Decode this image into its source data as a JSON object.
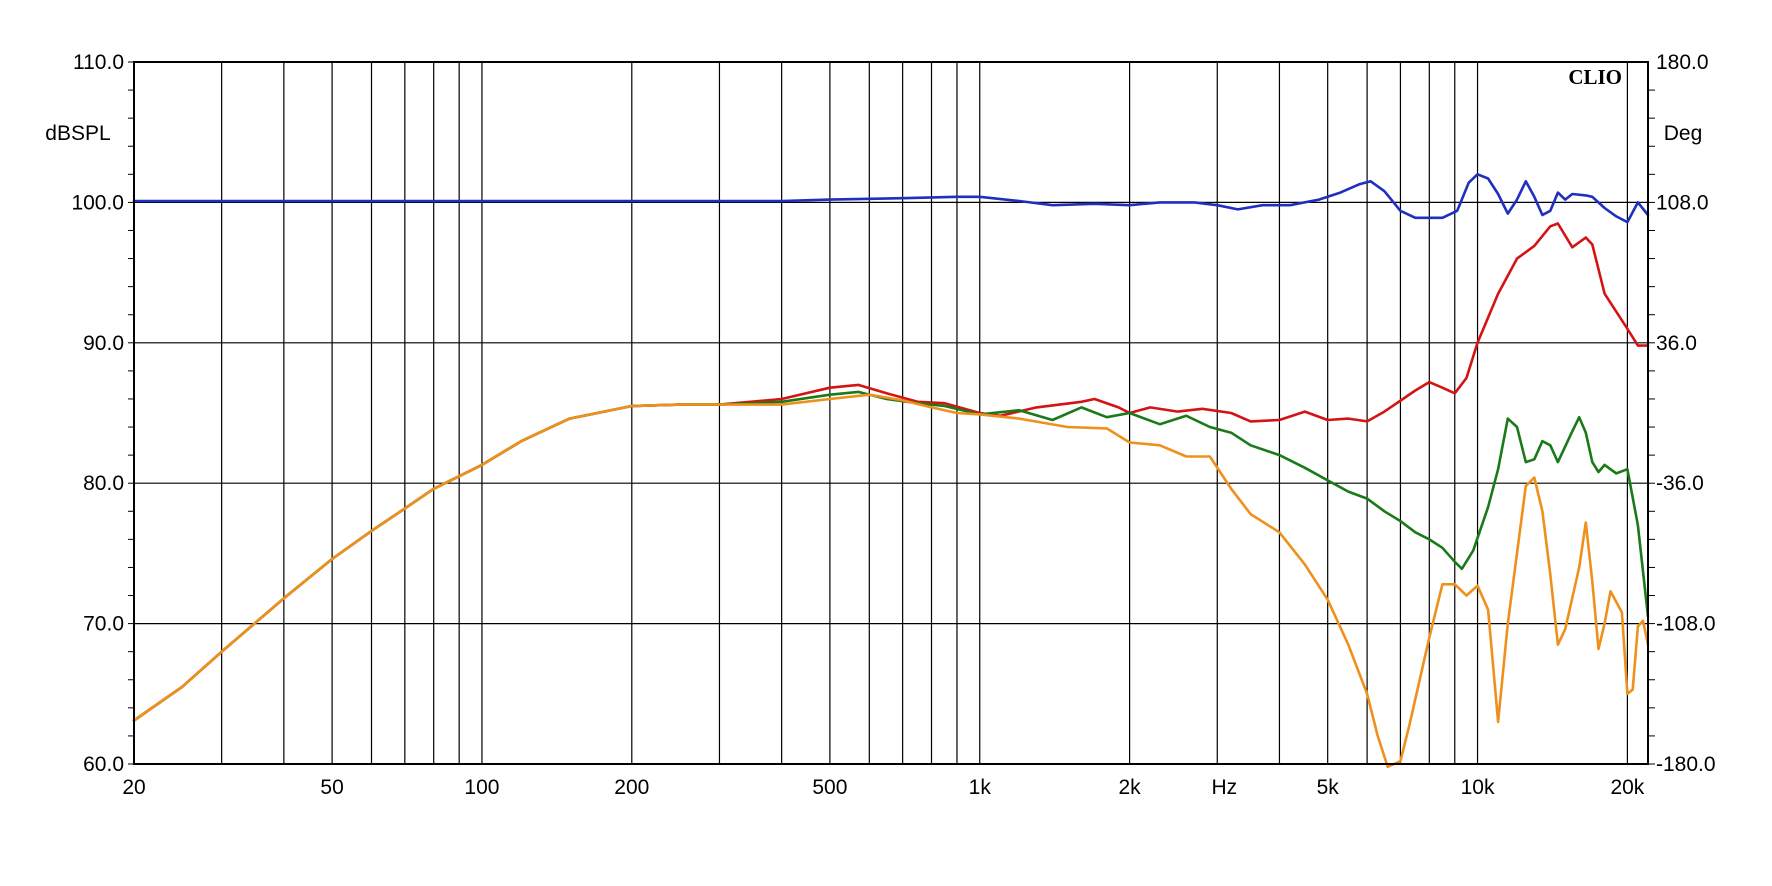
{
  "chart_data": {
    "type": "line",
    "brand": "CLIO",
    "xlabel": "Hz",
    "ylabel": "dBSPL",
    "y2label": "Deg",
    "xscale": "log",
    "xlim": [
      20,
      22000
    ],
    "ylim": [
      60,
      110
    ],
    "y2lim": [
      -180,
      180
    ],
    "grid": true,
    "x_ticks": [
      {
        "value": 20,
        "label": "20"
      },
      {
        "value": 50,
        "label": "50"
      },
      {
        "value": 100,
        "label": "100"
      },
      {
        "value": 200,
        "label": "200"
      },
      {
        "value": 500,
        "label": "500"
      },
      {
        "value": 1000,
        "label": "1k"
      },
      {
        "value": 2000,
        "label": "2k"
      },
      {
        "value": 5000,
        "label": "5k"
      },
      {
        "value": 10000,
        "label": "10k"
      },
      {
        "value": 20000,
        "label": "20k"
      }
    ],
    "x_unit_position": 3100,
    "y_ticks": [
      {
        "value": 60,
        "label": "60.0"
      },
      {
        "value": 70,
        "label": "70.0"
      },
      {
        "value": 80,
        "label": "80.0"
      },
      {
        "value": 90,
        "label": "90.0"
      },
      {
        "value": 100,
        "label": "100.0"
      },
      {
        "value": 110,
        "label": "110.0"
      }
    ],
    "y2_ticks": [
      {
        "value": -180,
        "label": "-180.0"
      },
      {
        "value": -108,
        "label": "-108.0"
      },
      {
        "value": -36,
        "label": "-36.0"
      },
      {
        "value": 36,
        "label": "36.0"
      },
      {
        "value": 108,
        "label": "108.0"
      },
      {
        "value": 180,
        "label": "180.0"
      }
    ],
    "series": [
      {
        "color": "#1f2fc0",
        "points": [
          [
            20,
            100.1
          ],
          [
            50,
            100.1
          ],
          [
            100,
            100.1
          ],
          [
            200,
            100.1
          ],
          [
            400,
            100.1
          ],
          [
            500,
            100.2
          ],
          [
            700,
            100.3
          ],
          [
            900,
            100.4
          ],
          [
            1000,
            100.4
          ],
          [
            1200,
            100.1
          ],
          [
            1400,
            99.8
          ],
          [
            1700,
            99.9
          ],
          [
            2000,
            99.8
          ],
          [
            2300,
            100.0
          ],
          [
            2700,
            100.0
          ],
          [
            3000,
            99.8
          ],
          [
            3300,
            99.5
          ],
          [
            3700,
            99.8
          ],
          [
            4200,
            99.8
          ],
          [
            4800,
            100.2
          ],
          [
            5300,
            100.7
          ],
          [
            5800,
            101.3
          ],
          [
            6100,
            101.5
          ],
          [
            6500,
            100.8
          ],
          [
            7000,
            99.4
          ],
          [
            7500,
            98.9
          ],
          [
            8500,
            98.9
          ],
          [
            9100,
            99.4
          ],
          [
            9600,
            101.4
          ],
          [
            10000,
            102.0
          ],
          [
            10500,
            101.7
          ],
          [
            11000,
            100.6
          ],
          [
            11500,
            99.2
          ],
          [
            12000,
            100.2
          ],
          [
            12500,
            101.5
          ],
          [
            13000,
            100.4
          ],
          [
            13500,
            99.1
          ],
          [
            14000,
            99.4
          ],
          [
            14500,
            100.7
          ],
          [
            15000,
            100.2
          ],
          [
            15500,
            100.6
          ],
          [
            16500,
            100.5
          ],
          [
            17000,
            100.4
          ],
          [
            18000,
            99.6
          ],
          [
            19000,
            99.0
          ],
          [
            20000,
            98.6
          ],
          [
            21000,
            100.0
          ],
          [
            22000,
            99.1
          ]
        ]
      },
      {
        "color": "#d41414",
        "points": [
          [
            20,
            63.1
          ],
          [
            25,
            65.5
          ],
          [
            30,
            68.0
          ],
          [
            40,
            71.8
          ],
          [
            50,
            74.6
          ],
          [
            60,
            76.6
          ],
          [
            70,
            78.2
          ],
          [
            80,
            79.6
          ],
          [
            100,
            81.3
          ],
          [
            120,
            83.0
          ],
          [
            150,
            84.6
          ],
          [
            200,
            85.5
          ],
          [
            250,
            85.6
          ],
          [
            300,
            85.6
          ],
          [
            400,
            86.0
          ],
          [
            500,
            86.8
          ],
          [
            570,
            87.0
          ],
          [
            650,
            86.4
          ],
          [
            750,
            85.8
          ],
          [
            850,
            85.7
          ],
          [
            1000,
            85.0
          ],
          [
            1100,
            84.8
          ],
          [
            1300,
            85.4
          ],
          [
            1600,
            85.8
          ],
          [
            1700,
            86.0
          ],
          [
            1900,
            85.4
          ],
          [
            2000,
            85.0
          ],
          [
            2200,
            85.4
          ],
          [
            2500,
            85.1
          ],
          [
            2800,
            85.3
          ],
          [
            3200,
            85.0
          ],
          [
            3500,
            84.4
          ],
          [
            4000,
            84.5
          ],
          [
            4500,
            85.1
          ],
          [
            5000,
            84.5
          ],
          [
            5500,
            84.6
          ],
          [
            6000,
            84.4
          ],
          [
            6500,
            85.1
          ],
          [
            7500,
            86.6
          ],
          [
            8000,
            87.2
          ],
          [
            8500,
            86.8
          ],
          [
            9000,
            86.4
          ],
          [
            9500,
            87.5
          ],
          [
            10000,
            90.0
          ],
          [
            11000,
            93.5
          ],
          [
            12000,
            96.0
          ],
          [
            13000,
            96.9
          ],
          [
            14000,
            98.3
          ],
          [
            14500,
            98.5
          ],
          [
            15500,
            96.8
          ],
          [
            16500,
            97.5
          ],
          [
            17000,
            97.0
          ],
          [
            18000,
            93.5
          ],
          [
            20000,
            91.0
          ],
          [
            21000,
            89.8
          ],
          [
            22000,
            89.8
          ]
        ]
      },
      {
        "color": "#1a7a1a",
        "points": [
          [
            20,
            63.1
          ],
          [
            25,
            65.5
          ],
          [
            30,
            68.0
          ],
          [
            40,
            71.8
          ],
          [
            50,
            74.6
          ],
          [
            60,
            76.6
          ],
          [
            70,
            78.2
          ],
          [
            80,
            79.6
          ],
          [
            100,
            81.3
          ],
          [
            120,
            83.0
          ],
          [
            150,
            84.6
          ],
          [
            200,
            85.5
          ],
          [
            250,
            85.6
          ],
          [
            300,
            85.6
          ],
          [
            400,
            85.8
          ],
          [
            500,
            86.3
          ],
          [
            570,
            86.5
          ],
          [
            650,
            86.0
          ],
          [
            750,
            85.7
          ],
          [
            850,
            85.5
          ],
          [
            1000,
            84.9
          ],
          [
            1200,
            85.2
          ],
          [
            1400,
            84.5
          ],
          [
            1600,
            85.4
          ],
          [
            1800,
            84.7
          ],
          [
            2000,
            85.0
          ],
          [
            2300,
            84.2
          ],
          [
            2600,
            84.8
          ],
          [
            2900,
            84.0
          ],
          [
            3200,
            83.6
          ],
          [
            3500,
            82.7
          ],
          [
            4000,
            82.0
          ],
          [
            4500,
            81.1
          ],
          [
            5000,
            80.2
          ],
          [
            5500,
            79.4
          ],
          [
            6000,
            78.9
          ],
          [
            6500,
            78.0
          ],
          [
            7000,
            77.3
          ],
          [
            7500,
            76.5
          ],
          [
            8000,
            76.0
          ],
          [
            8500,
            75.4
          ],
          [
            9000,
            74.4
          ],
          [
            9300,
            73.9
          ],
          [
            9800,
            75.2
          ],
          [
            10500,
            78.3
          ],
          [
            11000,
            81.0
          ],
          [
            11500,
            84.6
          ],
          [
            12000,
            84.0
          ],
          [
            12500,
            81.5
          ],
          [
            13000,
            81.7
          ],
          [
            13500,
            83.0
          ],
          [
            14000,
            82.7
          ],
          [
            14500,
            81.5
          ],
          [
            15500,
            83.7
          ],
          [
            16000,
            84.7
          ],
          [
            16500,
            83.6
          ],
          [
            17000,
            81.5
          ],
          [
            17500,
            80.8
          ],
          [
            18000,
            81.3
          ],
          [
            19000,
            80.7
          ],
          [
            20000,
            81.0
          ],
          [
            21000,
            77.0
          ],
          [
            22000,
            70.5
          ]
        ]
      },
      {
        "color": "#f0901c",
        "points": [
          [
            20,
            63.1
          ],
          [
            25,
            65.5
          ],
          [
            30,
            68.0
          ],
          [
            40,
            71.8
          ],
          [
            50,
            74.6
          ],
          [
            60,
            76.6
          ],
          [
            70,
            78.2
          ],
          [
            80,
            79.6
          ],
          [
            100,
            81.3
          ],
          [
            120,
            83.0
          ],
          [
            150,
            84.6
          ],
          [
            200,
            85.5
          ],
          [
            250,
            85.6
          ],
          [
            300,
            85.6
          ],
          [
            400,
            85.6
          ],
          [
            500,
            86.0
          ],
          [
            600,
            86.3
          ],
          [
            700,
            85.9
          ],
          [
            800,
            85.4
          ],
          [
            900,
            85.0
          ],
          [
            1000,
            84.9
          ],
          [
            1200,
            84.6
          ],
          [
            1500,
            84.0
          ],
          [
            1800,
            83.9
          ],
          [
            2000,
            82.9
          ],
          [
            2300,
            82.7
          ],
          [
            2600,
            81.9
          ],
          [
            2900,
            81.9
          ],
          [
            3200,
            79.6
          ],
          [
            3500,
            77.8
          ],
          [
            4000,
            76.5
          ],
          [
            4500,
            74.2
          ],
          [
            5000,
            71.7
          ],
          [
            5500,
            68.5
          ],
          [
            6000,
            65.0
          ],
          [
            6300,
            62.0
          ],
          [
            6600,
            59.8
          ],
          [
            7000,
            60.2
          ],
          [
            7300,
            62.8
          ],
          [
            8000,
            69.0
          ],
          [
            8500,
            72.8
          ],
          [
            9000,
            72.8
          ],
          [
            9500,
            72.0
          ],
          [
            10000,
            72.7
          ],
          [
            10500,
            71.0
          ],
          [
            11000,
            63.0
          ],
          [
            11500,
            70.0
          ],
          [
            12500,
            79.8
          ],
          [
            13000,
            80.4
          ],
          [
            13500,
            78.0
          ],
          [
            14000,
            73.5
          ],
          [
            14500,
            68.5
          ],
          [
            15000,
            69.6
          ],
          [
            16000,
            74.0
          ],
          [
            16500,
            77.2
          ],
          [
            17000,
            73.0
          ],
          [
            17500,
            68.2
          ],
          [
            18000,
            70.0
          ],
          [
            18500,
            72.3
          ],
          [
            19500,
            70.8
          ],
          [
            20000,
            65.0
          ],
          [
            20500,
            65.3
          ],
          [
            21000,
            69.8
          ],
          [
            21500,
            70.2
          ],
          [
            22000,
            68.5
          ]
        ]
      }
    ]
  }
}
